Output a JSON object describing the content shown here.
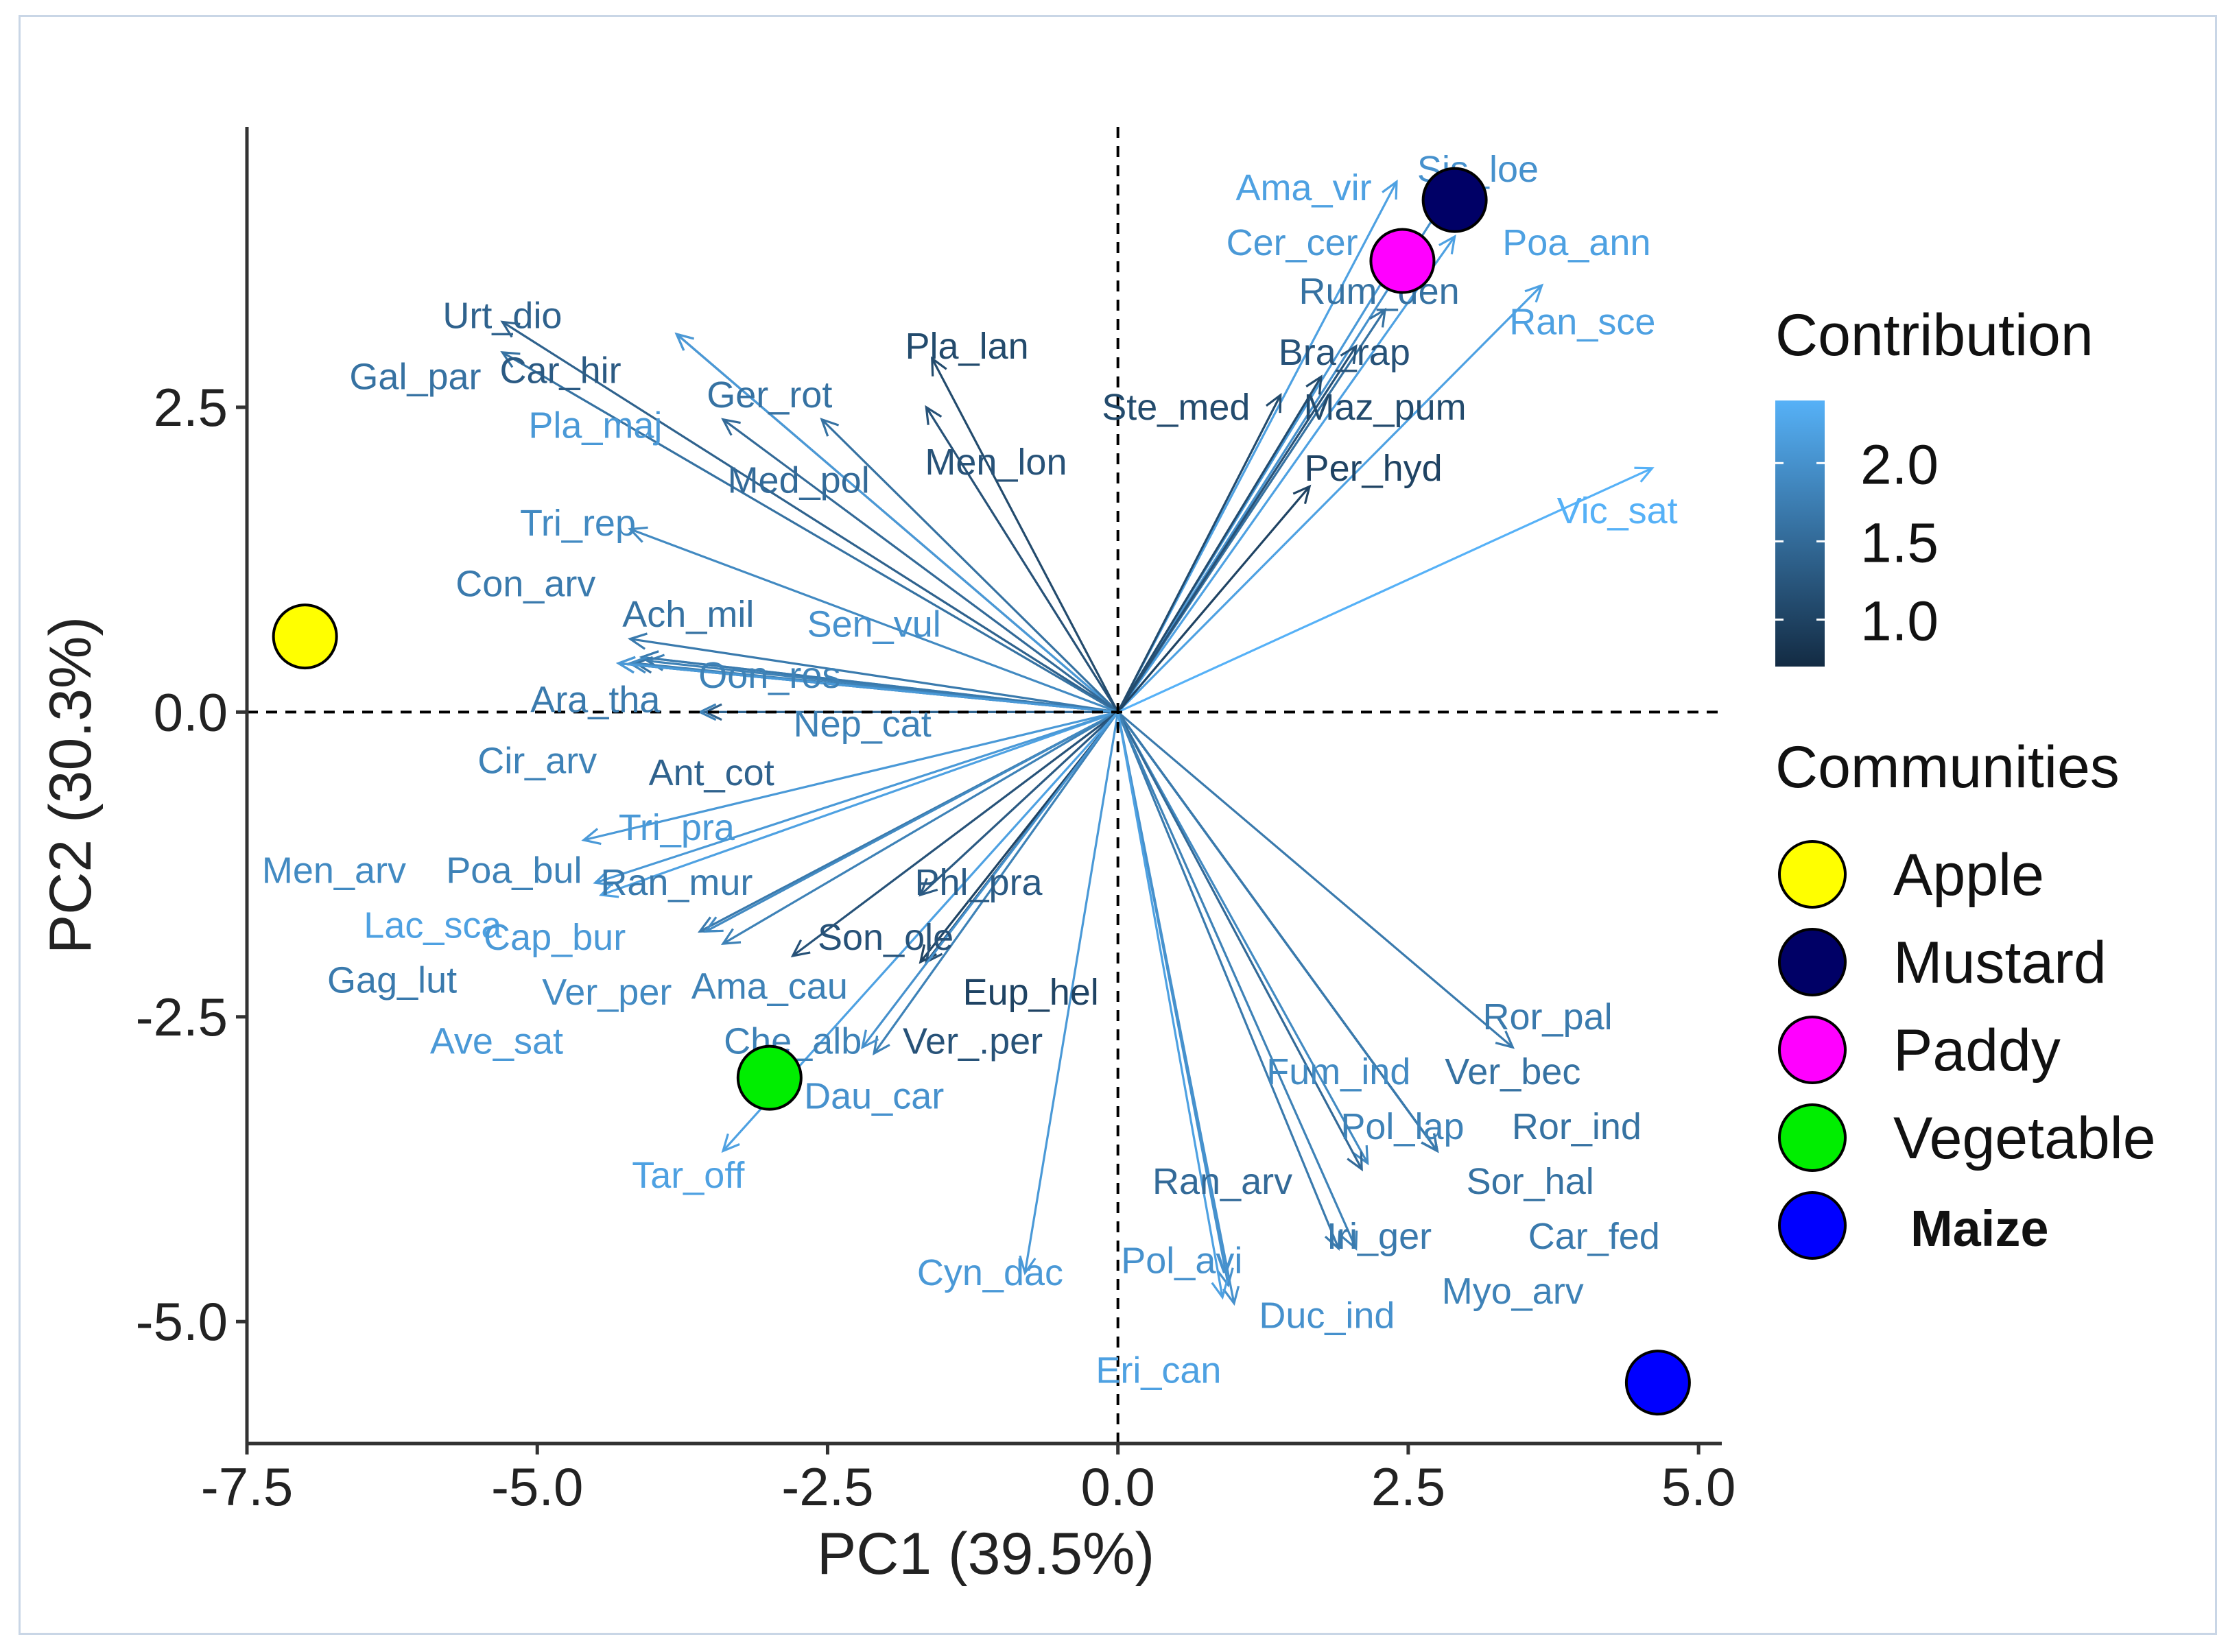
{
  "chart_data": {
    "type": "scatter",
    "subtype": "pca-biplot",
    "xlabel": "PC1 (39.5%)",
    "ylabel": "PC2 (30.3%)",
    "xlim": [
      -7.5,
      5.2
    ],
    "ylim": [
      -6.0,
      4.8
    ],
    "xticks": [
      -7.5,
      -5.0,
      -2.5,
      0.0,
      2.5,
      5.0
    ],
    "xtick_labels": [
      "-7.5",
      "-5.0",
      "-2.5",
      "0.0",
      "2.5",
      "5.0"
    ],
    "yticks": [
      -5.0,
      -2.5,
      0.0,
      2.5
    ],
    "ytick_labels": [
      "-5.0",
      "-2.5",
      "0.0",
      "2.5"
    ],
    "reference_lines": {
      "x": 0,
      "y": 0,
      "style": "dashed"
    },
    "grid": false,
    "colorbar": {
      "title": "Contribution",
      "ticks": [
        "2.0",
        "1.5",
        "1.0"
      ],
      "tick_values": [
        2.0,
        1.5,
        1.0
      ],
      "range": [
        0.7,
        2.4
      ],
      "color_low": "#132b43",
      "color_high": "#56b1f7"
    },
    "communities_legend": {
      "title": "Communities",
      "items": [
        {
          "name": "Apple",
          "color": "#ffff00"
        },
        {
          "name": "Mustard",
          "color": "#000066"
        },
        {
          "name": "Paddy",
          "color": "#ff00ff"
        },
        {
          "name": "Vegetable",
          "color": "#00ee00"
        },
        {
          "name": "Maize",
          "color": "#0000ff"
        }
      ]
    },
    "communities": [
      {
        "name": "Apple",
        "x": -7.0,
        "y": 0.62,
        "color": "#ffff00"
      },
      {
        "name": "Mustard",
        "x": 2.9,
        "y": 4.2,
        "color": "#000066"
      },
      {
        "name": "Paddy",
        "x": 2.45,
        "y": 3.7,
        "color": "#ff00ff"
      },
      {
        "name": "Vegetable",
        "x": -3.0,
        "y": -3.0,
        "color": "#00ee00"
      },
      {
        "name": "Maize",
        "x": 4.65,
        "y": -5.5,
        "color": "#0000ff"
      }
    ],
    "variables": [
      {
        "name": "Urt_dio",
        "x": -5.3,
        "y": 3.2,
        "contrib": 1.4,
        "lx": -5.3,
        "ly": 3.25
      },
      {
        "name": "Gal_par",
        "x": -5.3,
        "y": 2.95,
        "contrib": 1.6,
        "lx": -6.05,
        "ly": 2.75
      },
      {
        "name": "Car_hir",
        "x": -3.8,
        "y": 3.1,
        "contrib": 1.3,
        "lx": -4.8,
        "ly": 2.8
      },
      {
        "name": "Pla_maj",
        "x": -3.8,
        "y": 3.1,
        "contrib": 2.1,
        "lx": -4.5,
        "ly": 2.35
      },
      {
        "name": "Ger_rot",
        "x": -2.55,
        "y": 2.4,
        "contrib": 1.6,
        "lx": -3.0,
        "ly": 2.6
      },
      {
        "name": "Pla_lan",
        "x": -1.6,
        "y": 2.9,
        "contrib": 1.1,
        "lx": -1.3,
        "ly": 3.0
      },
      {
        "name": "Men_lon",
        "x": -1.65,
        "y": 2.5,
        "contrib": 1.2,
        "lx": -1.05,
        "ly": 2.05
      },
      {
        "name": "Med_pol",
        "x": -3.4,
        "y": 2.4,
        "contrib": 1.5,
        "lx": -2.75,
        "ly": 1.9
      },
      {
        "name": "Tri_rep",
        "x": -4.2,
        "y": 1.5,
        "contrib": 1.9,
        "lx": -4.65,
        "ly": 1.55
      },
      {
        "name": "Con_arv",
        "x": -4.2,
        "y": 0.6,
        "contrib": 1.7,
        "lx": -5.1,
        "ly": 1.05
      },
      {
        "name": "Ach_mil",
        "x": -4.15,
        "y": 0.4,
        "contrib": 1.6,
        "lx": -3.7,
        "ly": 0.8
      },
      {
        "name": "Sen_vul",
        "x": -4.1,
        "y": 0.45,
        "contrib": 2.0,
        "lx": -2.1,
        "ly": 0.72
      },
      {
        "name": "Oon_ros",
        "x": -4.05,
        "y": 0.42,
        "contrib": 1.8,
        "lx": -3.0,
        "ly": 0.3
      },
      {
        "name": "Ara_tha",
        "x": -4.1,
        "y": 0.45,
        "contrib": 1.7,
        "lx": -4.5,
        "ly": 0.1
      },
      {
        "name": "Nep_cat",
        "x": -3.6,
        "y": 0.0,
        "contrib": 1.8,
        "lx": -2.2,
        "ly": -0.1
      },
      {
        "name": "Ant_cot",
        "x": -3.55,
        "y": 0.0,
        "contrib": 1.4,
        "lx": -3.5,
        "ly": -0.5
      },
      {
        "name": "Cir_arv",
        "x": -4.2,
        "y": 0.4,
        "contrib": 1.8,
        "lx": -5.0,
        "ly": -0.4
      },
      {
        "name": "Tri_pra",
        "x": -4.6,
        "y": -1.05,
        "contrib": 2.1,
        "lx": -3.8,
        "ly": -0.95
      },
      {
        "name": "Men_arv",
        "x": -4.2,
        "y": 0.4,
        "contrib": 1.9,
        "lx": -6.75,
        "ly": -1.3
      },
      {
        "name": "Poa_bul",
        "x": -4.3,
        "y": 0.4,
        "contrib": 1.8,
        "lx": -5.2,
        "ly": -1.3
      },
      {
        "name": "Lac_sca",
        "x": -4.45,
        "y": -1.5,
        "contrib": 2.2,
        "lx": -5.9,
        "ly": -1.75
      },
      {
        "name": "Cap_bur",
        "x": -4.5,
        "y": -1.4,
        "contrib": 2.1,
        "lx": -4.85,
        "ly": -1.85
      },
      {
        "name": "Ran_mur",
        "x": -3.6,
        "y": -1.8,
        "contrib": 1.7,
        "lx": -3.8,
        "ly": -1.4
      },
      {
        "name": "Gag_lut",
        "x": -4.3,
        "y": 0.4,
        "contrib": 1.7,
        "lx": -6.25,
        "ly": -2.2
      },
      {
        "name": "Ver_per",
        "x": -3.55,
        "y": -1.8,
        "contrib": 1.9,
        "lx": -4.4,
        "ly": -2.3
      },
      {
        "name": "Ama_cau",
        "x": -3.4,
        "y": -1.9,
        "contrib": 1.8,
        "lx": -3.0,
        "ly": -2.25
      },
      {
        "name": "Son_ole",
        "x": -2.8,
        "y": -2.0,
        "contrib": 1.2,
        "lx": -2.0,
        "ly": -1.85
      },
      {
        "name": "Phl_pra",
        "x": -1.7,
        "y": -1.5,
        "contrib": 1.3,
        "lx": -1.2,
        "ly": -1.4
      },
      {
        "name": "Eup_hel",
        "x": -1.7,
        "y": -2.05,
        "contrib": 1.0,
        "lx": -0.75,
        "ly": -2.3
      },
      {
        "name": "Ave_sat",
        "x": -4.3,
        "y": 0.4,
        "contrib": 2.1,
        "lx": -5.35,
        "ly": -2.7
      },
      {
        "name": "Che_alb",
        "x": -2.1,
        "y": -2.8,
        "contrib": 1.8,
        "lx": -2.8,
        "ly": -2.7
      },
      {
        "name": "Ver_.per",
        "x": -1.65,
        "y": -2.05,
        "contrib": 1.2,
        "lx": -1.25,
        "ly": -2.7
      },
      {
        "name": "Dau_car",
        "x": -2.2,
        "y": -2.75,
        "contrib": 2.0,
        "lx": -2.1,
        "ly": -3.15
      },
      {
        "name": "Tar_off",
        "x": -3.4,
        "y": -3.6,
        "contrib": 2.2,
        "lx": -3.7,
        "ly": -3.8
      },
      {
        "name": "Cyn_dac",
        "x": -0.8,
        "y": -4.6,
        "contrib": 2.1,
        "lx": -1.1,
        "ly": -4.6
      },
      {
        "name": "Ama_vir",
        "x": 2.4,
        "y": 4.35,
        "contrib": 2.2,
        "lx": 1.6,
        "ly": 4.3
      },
      {
        "name": "Sis_loe",
        "x": 2.85,
        "y": 4.25,
        "contrib": 2.0,
        "lx": 3.1,
        "ly": 4.45
      },
      {
        "name": "Cer_cer",
        "x": 2.45,
        "y": 3.8,
        "contrib": 2.1,
        "lx": 1.5,
        "ly": 3.85
      },
      {
        "name": "Poa_ann",
        "x": 2.9,
        "y": 3.9,
        "contrib": 2.2,
        "lx": 3.95,
        "ly": 3.85
      },
      {
        "name": "Rum_den",
        "x": 2.3,
        "y": 3.3,
        "contrib": 1.6,
        "lx": 2.25,
        "ly": 3.45
      },
      {
        "name": "Ran_sce",
        "x": 3.65,
        "y": 3.5,
        "contrib": 2.2,
        "lx": 4.0,
        "ly": 3.2
      },
      {
        "name": "Bra_rap",
        "x": 2.05,
        "y": 3.0,
        "contrib": 1.2,
        "lx": 1.95,
        "ly": 2.95
      },
      {
        "name": "Ste_med",
        "x": 1.4,
        "y": 2.6,
        "contrib": 1.1,
        "lx": 0.5,
        "ly": 2.5
      },
      {
        "name": "Maz_pum",
        "x": 1.75,
        "y": 2.75,
        "contrib": 1.1,
        "lx": 2.3,
        "ly": 2.5
      },
      {
        "name": "Per_hyd",
        "x": 1.65,
        "y": 1.85,
        "contrib": 1.0,
        "lx": 2.2,
        "ly": 2.0
      },
      {
        "name": "Vic_sat",
        "x": 4.6,
        "y": 2.0,
        "contrib": 2.4,
        "lx": 4.3,
        "ly": 1.65
      },
      {
        "name": "Ror_pal",
        "x": 3.4,
        "y": -2.75,
        "contrib": 1.7,
        "lx": 3.7,
        "ly": -2.5
      },
      {
        "name": "Fum_ind",
        "x": 2.15,
        "y": -3.7,
        "contrib": 1.9,
        "lx": 1.9,
        "ly": -2.95
      },
      {
        "name": "Ver_bec",
        "x": 2.75,
        "y": -3.6,
        "contrib": 1.6,
        "lx": 3.4,
        "ly": -2.95
      },
      {
        "name": "Pol_lap",
        "x": 2.75,
        "y": -3.6,
        "contrib": 1.8,
        "lx": 2.45,
        "ly": -3.4
      },
      {
        "name": "Ror_ind",
        "x": 2.75,
        "y": -3.6,
        "contrib": 1.6,
        "lx": 3.95,
        "ly": -3.4
      },
      {
        "name": "Sor_hal",
        "x": 2.75,
        "y": -3.6,
        "contrib": 1.6,
        "lx": 3.55,
        "ly": -3.85
      },
      {
        "name": "Ran_arv",
        "x": 2.1,
        "y": -3.75,
        "contrib": 1.5,
        "lx": 0.9,
        "ly": -3.85
      },
      {
        "name": "Car_fed",
        "x": 2.75,
        "y": -3.6,
        "contrib": 1.7,
        "lx": 4.1,
        "ly": -4.3
      },
      {
        "name": "Iri_ger",
        "x": 1.9,
        "y": -4.4,
        "contrib": 1.7,
        "lx": 2.25,
        "ly": -4.3
      },
      {
        "name": "Pol_avi",
        "x": 0.95,
        "y": -4.7,
        "contrib": 2.0,
        "lx": 0.55,
        "ly": -4.5
      },
      {
        "name": "Myo_arv",
        "x": 2.05,
        "y": -4.4,
        "contrib": 1.8,
        "lx": 3.4,
        "ly": -4.75
      },
      {
        "name": "Duc_ind",
        "x": 1.0,
        "y": -4.85,
        "contrib": 2.0,
        "lx": 1.8,
        "ly": -4.95
      },
      {
        "name": "Eri_can",
        "x": 0.9,
        "y": -4.8,
        "contrib": 2.2,
        "lx": 0.35,
        "ly": -5.4
      }
    ]
  }
}
